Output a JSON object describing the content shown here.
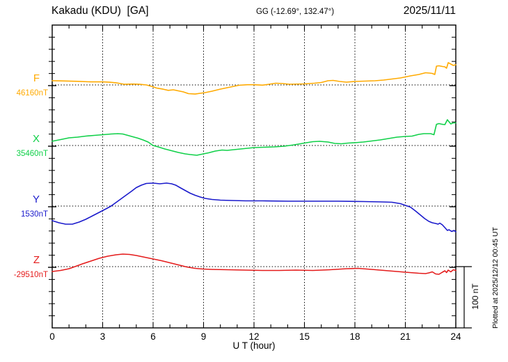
{
  "header": {
    "title": "Kakadu (KDU)  [GA]",
    "coordinates": "GG (-12.69°, 132.47°)",
    "date": "2025/11/11"
  },
  "annotations": {
    "scale_bar_label": "100 nT",
    "plotted_at": "Plotted at 2025/12/12 00:45 UT"
  },
  "chart_data": {
    "type": "line",
    "title": "Kakadu (KDU)  [GA]",
    "subtitle": "GG (-12.69°, 132.47°)",
    "date": "2025/11/11",
    "xlabel": "U T (hour)",
    "xlim": [
      0,
      24
    ],
    "xticks": [
      0,
      3,
      6,
      9,
      12,
      15,
      18,
      21,
      24
    ],
    "minor_xtick_hours": 1,
    "y_division_nT": 20,
    "scale_bar_nT": 100,
    "grid": "vertical dotted lines every 3 h; horizontal dotted line at each channel baseline",
    "legend_position": "left margin, one colored label per channel",
    "points_format": "[UT hour, deviation from channel baseline in nT]",
    "series": [
      {
        "name": "F",
        "color": "#FFAA00",
        "baseline_label": "46160nT",
        "baseline_nT": 46160,
        "points": [
          [
            0,
            7
          ],
          [
            0.7,
            6.5
          ],
          [
            1.5,
            6
          ],
          [
            2.3,
            5
          ],
          [
            3,
            5
          ],
          [
            3.4,
            4.5
          ],
          [
            3.8,
            3.5
          ],
          [
            4.3,
            1
          ],
          [
            4.8,
            1.5
          ],
          [
            5.2,
            1
          ],
          [
            5.6,
            0
          ],
          [
            5.9,
            -2.3
          ],
          [
            6.2,
            -5
          ],
          [
            6.6,
            -7
          ],
          [
            6.9,
            -9
          ],
          [
            7.2,
            -8
          ],
          [
            7.5,
            -9.7
          ],
          [
            7.8,
            -11.5
          ],
          [
            8.1,
            -14.3
          ],
          [
            8.5,
            -15
          ],
          [
            8.8,
            -13.8
          ],
          [
            9.1,
            -12.6
          ],
          [
            9.5,
            -10.3
          ],
          [
            10,
            -6.9
          ],
          [
            10.5,
            -4
          ],
          [
            11.1,
            -0.6
          ],
          [
            11.6,
            0.3
          ],
          [
            12,
            0.3
          ],
          [
            12.5,
            -0.3
          ],
          [
            12.9,
            1.1
          ],
          [
            13.3,
            2.9
          ],
          [
            13.7,
            2.3
          ],
          [
            14.1,
            1.1
          ],
          [
            15,
            1.7
          ],
          [
            15.6,
            2.9
          ],
          [
            16,
            4
          ],
          [
            16.4,
            6.9
          ],
          [
            16.7,
            7.5
          ],
          [
            17.1,
            5.7
          ],
          [
            17.5,
            4.6
          ],
          [
            18,
            5.7
          ],
          [
            18.6,
            6.3
          ],
          [
            19.2,
            6.9
          ],
          [
            19.7,
            8
          ],
          [
            20.2,
            9.7
          ],
          [
            20.7,
            11.5
          ],
          [
            21.3,
            14.9
          ],
          [
            21.8,
            17.2
          ],
          [
            22.2,
            20.1
          ],
          [
            22.45,
            19.5
          ],
          [
            22.6,
            18.9
          ],
          [
            22.75,
            17.2
          ],
          [
            22.85,
            31
          ],
          [
            23,
            31.5
          ],
          [
            23.2,
            30.4
          ],
          [
            23.35,
            29.8
          ],
          [
            23.45,
            27.5
          ],
          [
            23.55,
            36.7
          ],
          [
            23.7,
            34.4
          ],
          [
            23.85,
            32.1
          ],
          [
            24,
            33.3
          ]
        ]
      },
      {
        "name": "X",
        "color": "#0FD048",
        "baseline_label": "35460nT",
        "baseline_nT": 35460,
        "points": [
          [
            0,
            7
          ],
          [
            0.5,
            9.7
          ],
          [
            1,
            12.6
          ],
          [
            1.5,
            13.8
          ],
          [
            2,
            15.5
          ],
          [
            2.5,
            16.6
          ],
          [
            3,
            17.8
          ],
          [
            3.5,
            18.9
          ],
          [
            3.9,
            19.5
          ],
          [
            4.2,
            18.9
          ],
          [
            4.5,
            16.6
          ],
          [
            4.8,
            14.3
          ],
          [
            5.1,
            12
          ],
          [
            5.4,
            9.2
          ],
          [
            5.7,
            5.7
          ],
          [
            6,
            0
          ],
          [
            6.3,
            -2.3
          ],
          [
            6.7,
            -5.7
          ],
          [
            7.1,
            -8.6
          ],
          [
            7.5,
            -11.5
          ],
          [
            7.9,
            -13.8
          ],
          [
            8.2,
            -14.9
          ],
          [
            8.6,
            -16.1
          ],
          [
            9,
            -13.8
          ],
          [
            9.3,
            -12
          ],
          [
            9.7,
            -9.2
          ],
          [
            10.1,
            -7.5
          ],
          [
            10.4,
            -8
          ],
          [
            10.8,
            -6.9
          ],
          [
            11.2,
            -5.7
          ],
          [
            11.6,
            -4.6
          ],
          [
            12,
            -3.4
          ],
          [
            12.6,
            -2.9
          ],
          [
            13.2,
            -2.3
          ],
          [
            13.8,
            -1.1
          ],
          [
            14.4,
            1.1
          ],
          [
            15,
            4
          ],
          [
            15.5,
            6.3
          ],
          [
            15.9,
            6.9
          ],
          [
            16.4,
            5.7
          ],
          [
            16.8,
            3.4
          ],
          [
            17.2,
            2.9
          ],
          [
            17.6,
            4
          ],
          [
            18,
            4.6
          ],
          [
            18.5,
            5.7
          ],
          [
            19,
            7.5
          ],
          [
            19.5,
            9.2
          ],
          [
            20,
            11.5
          ],
          [
            20.5,
            13.8
          ],
          [
            21,
            14.9
          ],
          [
            21.4,
            15.5
          ],
          [
            21.8,
            18.3
          ],
          [
            22.1,
            19.5
          ],
          [
            22.5,
            19.5
          ],
          [
            22.7,
            17.8
          ],
          [
            22.85,
            34.9
          ],
          [
            23,
            36.1
          ],
          [
            23.2,
            34.9
          ],
          [
            23.35,
            34.4
          ],
          [
            23.5,
            42.4
          ],
          [
            23.6,
            39
          ],
          [
            23.7,
            35.5
          ],
          [
            23.85,
            37.3
          ],
          [
            24,
            37.3
          ]
        ]
      },
      {
        "name": "Y",
        "color": "#1A1ACC",
        "baseline_label": "1530nT",
        "baseline_nT": 1530,
        "points": [
          [
            0,
            -24
          ],
          [
            0.4,
            -27.5
          ],
          [
            0.8,
            -29.8
          ],
          [
            1.2,
            -29.8
          ],
          [
            1.6,
            -26.4
          ],
          [
            2,
            -21.8
          ],
          [
            2.4,
            -16.1
          ],
          [
            2.8,
            -10.3
          ],
          [
            3.2,
            -4.6
          ],
          [
            3.5,
            0
          ],
          [
            3.9,
            8
          ],
          [
            4.3,
            16.1
          ],
          [
            4.7,
            24.1
          ],
          [
            5,
            30.4
          ],
          [
            5.3,
            34.4
          ],
          [
            5.6,
            37.3
          ],
          [
            6,
            37.8
          ],
          [
            6.4,
            36.7
          ],
          [
            6.8,
            37.8
          ],
          [
            7.1,
            36.7
          ],
          [
            7.35,
            34.4
          ],
          [
            7.6,
            30.4
          ],
          [
            7.9,
            25.8
          ],
          [
            8.2,
            21.2
          ],
          [
            8.5,
            17.8
          ],
          [
            8.8,
            14.9
          ],
          [
            9.1,
            12.6
          ],
          [
            9.5,
            10.9
          ],
          [
            10,
            9.7
          ],
          [
            10.7,
            9.2
          ],
          [
            11.5,
            8.6
          ],
          [
            12.5,
            8.6
          ],
          [
            14,
            8
          ],
          [
            15.5,
            8
          ],
          [
            17,
            8
          ],
          [
            18.5,
            7.5
          ],
          [
            19.5,
            6.9
          ],
          [
            20.2,
            6.3
          ],
          [
            20.7,
            4
          ],
          [
            21,
            1.1
          ],
          [
            21.3,
            -1.7
          ],
          [
            21.6,
            -8
          ],
          [
            21.9,
            -14.9
          ],
          [
            22.15,
            -20.6
          ],
          [
            22.4,
            -25.2
          ],
          [
            22.6,
            -27.5
          ],
          [
            22.8,
            -28.7
          ],
          [
            22.95,
            -29.8
          ],
          [
            23.05,
            -28.1
          ],
          [
            23.2,
            -31
          ],
          [
            23.35,
            -35.6
          ],
          [
            23.5,
            -40.1
          ],
          [
            23.6,
            -39
          ],
          [
            23.75,
            -41.9
          ],
          [
            23.9,
            -40.1
          ],
          [
            24,
            -42.4
          ]
        ]
      },
      {
        "name": "Z",
        "color": "#E41B1B",
        "baseline_label": "-29510nT",
        "baseline_nT": -29510,
        "points": [
          [
            0,
            -8
          ],
          [
            0.5,
            -6.3
          ],
          [
            1,
            -3.4
          ],
          [
            1.35,
            0
          ],
          [
            1.8,
            4.6
          ],
          [
            2.3,
            9.2
          ],
          [
            2.8,
            13.8
          ],
          [
            3.3,
            17.2
          ],
          [
            3.8,
            19.5
          ],
          [
            4.2,
            20.6
          ],
          [
            4.6,
            20.1
          ],
          [
            5,
            18.3
          ],
          [
            5.5,
            15.5
          ],
          [
            6,
            12.6
          ],
          [
            6.5,
            9.7
          ],
          [
            7,
            6.3
          ],
          [
            7.5,
            2.9
          ],
          [
            8,
            -0.6
          ],
          [
            8.5,
            -2.9
          ],
          [
            9,
            -4
          ],
          [
            9.5,
            -4.6
          ],
          [
            10.5,
            -5.2
          ],
          [
            11.5,
            -5.7
          ],
          [
            12.5,
            -6.3
          ],
          [
            13.5,
            -6.3
          ],
          [
            14.5,
            -5.7
          ],
          [
            15.5,
            -6.3
          ],
          [
            16.5,
            -5.2
          ],
          [
            17.5,
            -3.4
          ],
          [
            18.2,
            -2.9
          ],
          [
            19,
            -4.6
          ],
          [
            20,
            -6.9
          ],
          [
            21,
            -9.2
          ],
          [
            21.8,
            -10.9
          ],
          [
            22.2,
            -11.5
          ],
          [
            22.4,
            -10.3
          ],
          [
            22.6,
            -8.6
          ],
          [
            22.8,
            -12
          ],
          [
            23,
            -12.6
          ],
          [
            23.2,
            -9.2
          ],
          [
            23.35,
            -6.9
          ],
          [
            23.45,
            -9.7
          ],
          [
            23.55,
            -5.7
          ],
          [
            23.7,
            -8.6
          ],
          [
            23.85,
            -5.2
          ],
          [
            24,
            -6.3
          ]
        ]
      }
    ]
  }
}
